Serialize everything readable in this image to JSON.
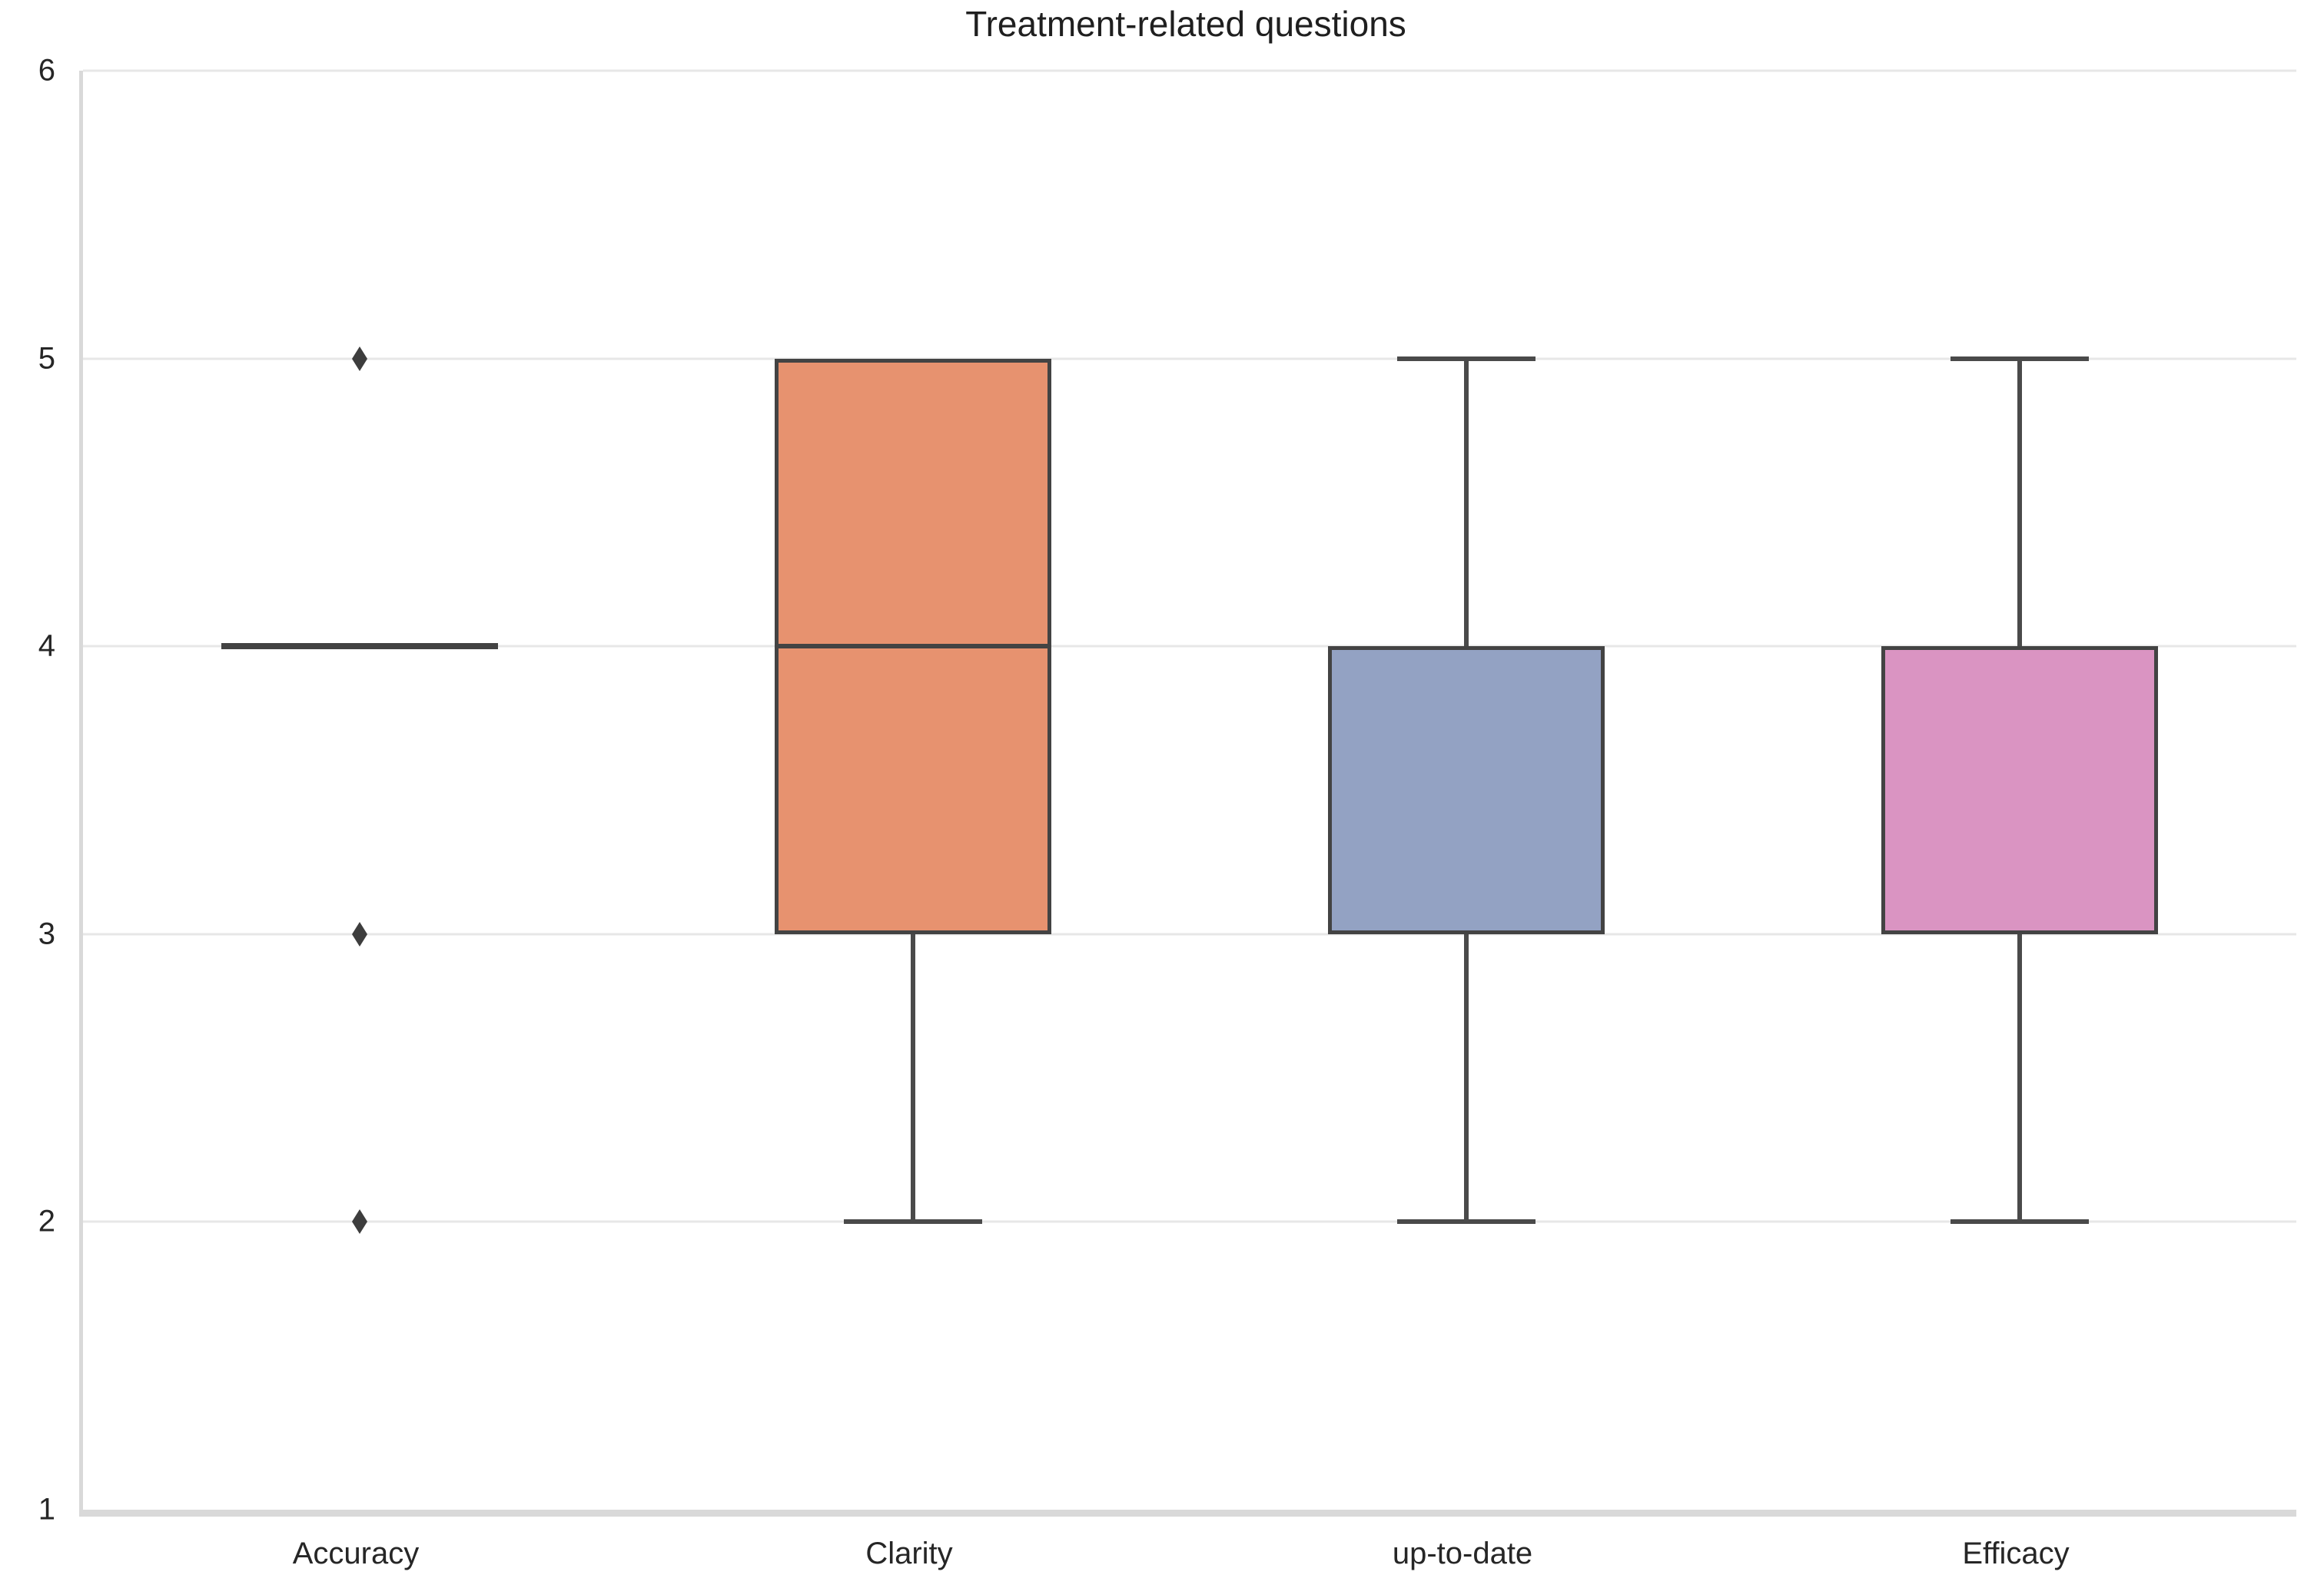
{
  "chart_data": {
    "type": "box",
    "title": "Treatment-related questions",
    "categories": [
      "Accuracy",
      "Clarity",
      "up-to-date",
      "Efficacy"
    ],
    "xlabel": "",
    "ylabel": "",
    "ylim": [
      1,
      6
    ],
    "y_ticks": [
      6,
      5,
      4,
      3,
      2,
      1
    ],
    "grid": "horizontal",
    "legend": "none",
    "series": [
      {
        "name": "Accuracy",
        "whisker_low": 4,
        "q1": 4,
        "median": 4,
        "q3": 4,
        "whisker_high": 4,
        "outliers": [
          5,
          3,
          2
        ],
        "fill": null
      },
      {
        "name": "Clarity",
        "whisker_low": 2,
        "q1": 3,
        "median": 4,
        "q3": 5,
        "whisker_high": 5,
        "outliers": [],
        "fill": "#E7926F"
      },
      {
        "name": "up-to-date",
        "whisker_low": 2,
        "q1": 3,
        "median": 4,
        "q3": 4,
        "whisker_high": 5,
        "outliers": [],
        "fill": "#93A2C3"
      },
      {
        "name": "Efficacy",
        "whisker_low": 2,
        "q1": 3,
        "median": 4,
        "q3": 4,
        "whisker_high": 5,
        "outliers": [],
        "fill": "#DA94C2"
      }
    ],
    "colors": {
      "box_border": "#434343",
      "whisker": "#4a4a4a",
      "outlier": "#3d3d3d",
      "gridline": "#e7e7e7",
      "spine": "#d9d9d9",
      "text": "#262626",
      "title_text": "#1f1f1f",
      "background": "#ffffff"
    }
  }
}
